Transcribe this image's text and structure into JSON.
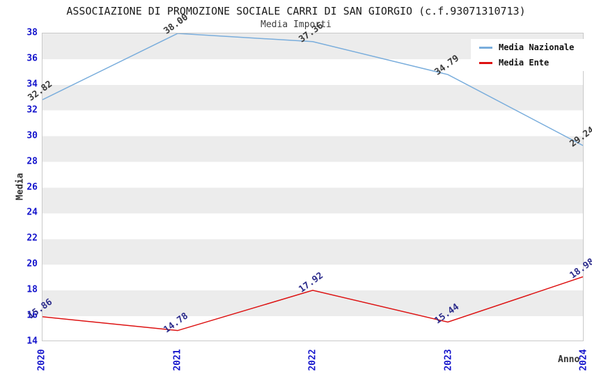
{
  "page": {
    "title": "ASSOCIAZIONE DI PROMOZIONE SOCIALE CARRI DI SAN GIORGIO (c.f.93071310713)",
    "subtitle": "Media Importi"
  },
  "chart_data": {
    "type": "line",
    "title": "ASSOCIAZIONE DI PROMOZIONE SOCIALE CARRI DI SAN GIORGIO (c.f.93071310713)",
    "subtitle": "Media Importi",
    "categories": [
      "2020",
      "2021",
      "2022",
      "2023",
      "2024"
    ],
    "series": [
      {
        "name": "Media Nazionale",
        "color": "#79ADDC",
        "label_color": "#3a3a3a",
        "values": [
          32.82,
          38.0,
          37.36,
          34.79,
          29.24
        ]
      },
      {
        "name": "Media Ente",
        "color": "#DD1111",
        "label_color": "#2d2d8c",
        "values": [
          15.86,
          14.78,
          17.92,
          15.44,
          18.98
        ]
      }
    ],
    "xlabel": "Anno",
    "ylabel": "Media",
    "ylim": [
      14,
      38
    ],
    "y_ticks": [
      38,
      36,
      34,
      32,
      30,
      28,
      26,
      24,
      22,
      20,
      18,
      16,
      14
    ],
    "tick_color": "#1414cc",
    "grid": "alternating-horizontal-bands",
    "band_color": "#ececec",
    "legend_position": "top-right",
    "value_label_rotation_deg": -36,
    "value_label_decimals": 2
  }
}
